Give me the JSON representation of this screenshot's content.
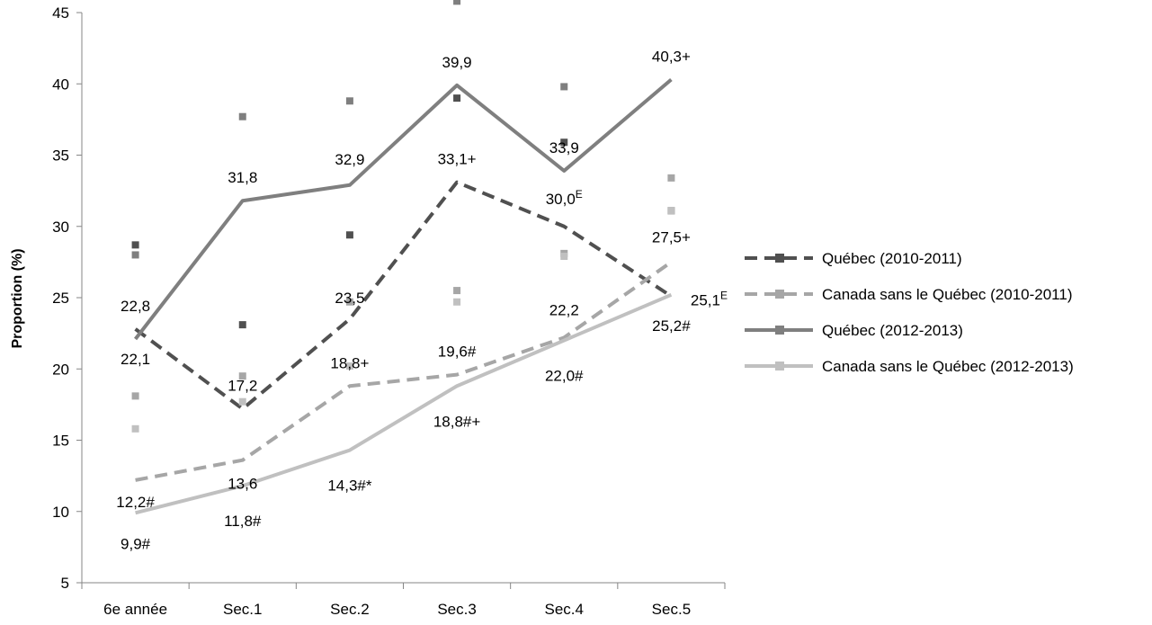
{
  "chart_data": {
    "type": "line",
    "title": "",
    "xlabel": "",
    "ylabel": "Proportion (%)",
    "ylim": [
      5,
      45
    ],
    "yticks": [
      "5",
      "10",
      "15",
      "20",
      "25",
      "30",
      "35",
      "40",
      "45"
    ],
    "categories": [
      "6e année",
      "Sec.1",
      "Sec.2",
      "Sec.3",
      "Sec.4",
      "Sec.5"
    ],
    "grid": false,
    "legend_position": "right",
    "series": [
      {
        "name": "Québec (2010-2011)",
        "style": "dashed",
        "color": "#505050",
        "values": [
          22.8,
          17.2,
          23.5,
          33.1,
          30.0,
          25.1
        ],
        "labels": [
          "22,8",
          "17,2",
          "23,5",
          "33,1+",
          "30,0",
          "25,1"
        ],
        "label_superscripts": [
          "",
          "",
          "",
          "",
          "E",
          "E"
        ],
        "ci_upper": [
          28.7,
          23.1,
          29.4,
          39.0,
          35.9,
          31.1
        ],
        "ci_lower": null
      },
      {
        "name": "Canada sans le Québec (2010-2011)",
        "style": "dashed",
        "color": "#a6a6a6",
        "values": [
          12.2,
          13.6,
          18.8,
          19.6,
          22.2,
          27.5
        ],
        "labels": [
          "12,2#",
          "13,6",
          "18,8+",
          "19,6#",
          "22,2",
          "27,5+"
        ],
        "label_superscripts": [
          "",
          "",
          "",
          "",
          "",
          ""
        ],
        "ci_upper": [
          18.1,
          19.5,
          24.7,
          25.5,
          28.1,
          33.4
        ],
        "ci_lower": null
      },
      {
        "name": "Québec (2012-2013)",
        "style": "solid",
        "color": "#7f7f7f",
        "values": [
          22.1,
          31.8,
          32.9,
          39.9,
          33.9,
          40.3
        ],
        "labels": [
          "22,1",
          "31,8",
          "32,9",
          "39,9",
          "33,9",
          "40,3+"
        ],
        "label_superscripts": [
          "",
          "",
          "",
          "",
          "",
          ""
        ],
        "ci_upper": [
          28.0,
          37.7,
          38.8,
          45.8,
          39.8,
          null
        ],
        "ci_lower": null
      },
      {
        "name": "Canada sans le Québec (2012-2013)",
        "style": "solid",
        "color": "#c0c0c0",
        "values": [
          9.9,
          11.8,
          14.3,
          18.8,
          22.0,
          25.2
        ],
        "labels": [
          "9,9#",
          "11,8#",
          "14,3#*",
          "18,8#+",
          "22,0#",
          "25,2#"
        ],
        "label_superscripts": [
          "",
          "",
          "",
          "",
          "",
          ""
        ],
        "ci_upper": [
          15.8,
          17.7,
          20.2,
          24.7,
          27.9,
          31.1
        ],
        "ci_lower": null
      }
    ]
  }
}
